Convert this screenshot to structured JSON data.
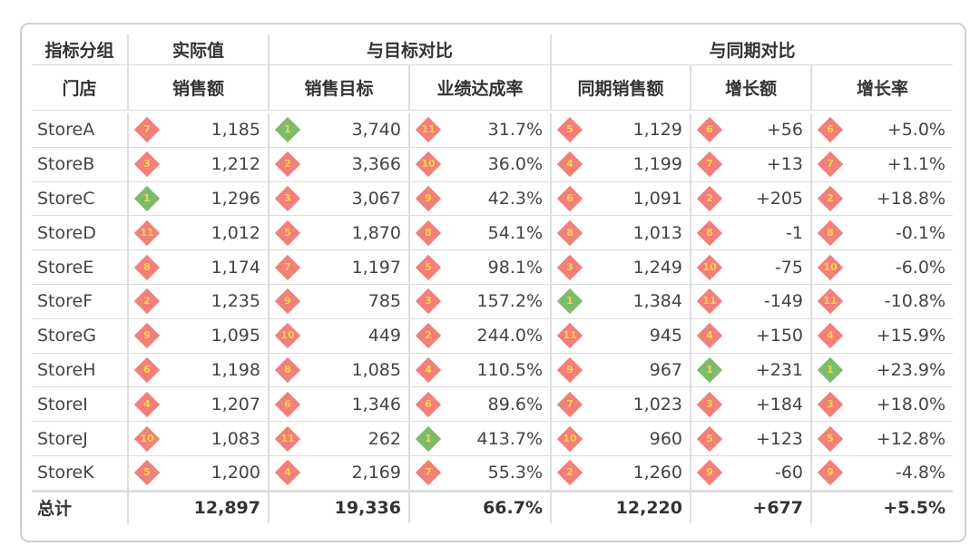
{
  "table": {
    "group_header": [
      "指标分组",
      "实际值",
      "与目标对比",
      "与同期对比"
    ],
    "header": [
      "门店",
      "销售额",
      "销售目标",
      "业绩达成率",
      "同期销售额",
      "增长额",
      "增长率"
    ],
    "rows": [
      [
        "StoreA",
        {
          "rank": 7,
          "value": "1,185"
        },
        {
          "rank": 1,
          "value": "3,740"
        },
        {
          "rank": 11,
          "value": "31.7%"
        },
        {
          "rank": 5,
          "value": "1,129"
        },
        {
          "rank": 6,
          "value": "+56"
        },
        {
          "rank": 6,
          "value": "+5.0%"
        }
      ],
      [
        "StoreB",
        {
          "rank": 3,
          "value": "1,212"
        },
        {
          "rank": 2,
          "value": "3,366"
        },
        {
          "rank": 10,
          "value": "36.0%"
        },
        {
          "rank": 4,
          "value": "1,199"
        },
        {
          "rank": 7,
          "value": "+13"
        },
        {
          "rank": 7,
          "value": "+1.1%"
        }
      ],
      [
        "StoreC",
        {
          "rank": 1,
          "value": "1,296"
        },
        {
          "rank": 3,
          "value": "3,067"
        },
        {
          "rank": 9,
          "value": "42.3%"
        },
        {
          "rank": 6,
          "value": "1,091"
        },
        {
          "rank": 2,
          "value": "+205"
        },
        {
          "rank": 2,
          "value": "+18.8%"
        }
      ],
      [
        "StoreD",
        {
          "rank": 11,
          "value": "1,012"
        },
        {
          "rank": 5,
          "value": "1,870"
        },
        {
          "rank": 8,
          "value": "54.1%"
        },
        {
          "rank": 8,
          "value": "1,013"
        },
        {
          "rank": 8,
          "value": "-1"
        },
        {
          "rank": 8,
          "value": "-0.1%"
        }
      ],
      [
        "StoreE",
        {
          "rank": 8,
          "value": "1,174"
        },
        {
          "rank": 7,
          "value": "1,197"
        },
        {
          "rank": 5,
          "value": "98.1%"
        },
        {
          "rank": 3,
          "value": "1,249"
        },
        {
          "rank": 10,
          "value": "-75"
        },
        {
          "rank": 10,
          "value": "-6.0%"
        }
      ],
      [
        "StoreF",
        {
          "rank": 2,
          "value": "1,235"
        },
        {
          "rank": 9,
          "value": "785"
        },
        {
          "rank": 3,
          "value": "157.2%"
        },
        {
          "rank": 1,
          "value": "1,384"
        },
        {
          "rank": 11,
          "value": "-149"
        },
        {
          "rank": 11,
          "value": "-10.8%"
        }
      ],
      [
        "StoreG",
        {
          "rank": 9,
          "value": "1,095"
        },
        {
          "rank": 10,
          "value": "449"
        },
        {
          "rank": 2,
          "value": "244.0%"
        },
        {
          "rank": 11,
          "value": "945"
        },
        {
          "rank": 4,
          "value": "+150"
        },
        {
          "rank": 4,
          "value": "+15.9%"
        }
      ],
      [
        "StoreH",
        {
          "rank": 6,
          "value": "1,198"
        },
        {
          "rank": 8,
          "value": "1,085"
        },
        {
          "rank": 4,
          "value": "110.5%"
        },
        {
          "rank": 9,
          "value": "967"
        },
        {
          "rank": 1,
          "value": "+231"
        },
        {
          "rank": 1,
          "value": "+23.9%"
        }
      ],
      [
        "StoreI",
        {
          "rank": 4,
          "value": "1,207"
        },
        {
          "rank": 6,
          "value": "1,346"
        },
        {
          "rank": 6,
          "value": "89.6%"
        },
        {
          "rank": 7,
          "value": "1,023"
        },
        {
          "rank": 3,
          "value": "+184"
        },
        {
          "rank": 3,
          "value": "+18.0%"
        }
      ],
      [
        "StoreJ",
        {
          "rank": 10,
          "value": "1,083"
        },
        {
          "rank": 11,
          "value": "262"
        },
        {
          "rank": 1,
          "value": "413.7%"
        },
        {
          "rank": 10,
          "value": "960"
        },
        {
          "rank": 5,
          "value": "+123"
        },
        {
          "rank": 5,
          "value": "+12.8%"
        }
      ],
      [
        "StoreK",
        {
          "rank": 5,
          "value": "1,200"
        },
        {
          "rank": 4,
          "value": "2,169"
        },
        {
          "rank": 7,
          "value": "55.3%"
        },
        {
          "rank": 2,
          "value": "1,260"
        },
        {
          "rank": 9,
          "value": "-60"
        },
        {
          "rank": 9,
          "value": "-4.8%"
        }
      ]
    ],
    "total": [
      "总计",
      "12,897",
      "19,336",
      "66.7%",
      "12,220",
      "+677",
      "+5.5%"
    ]
  }
}
